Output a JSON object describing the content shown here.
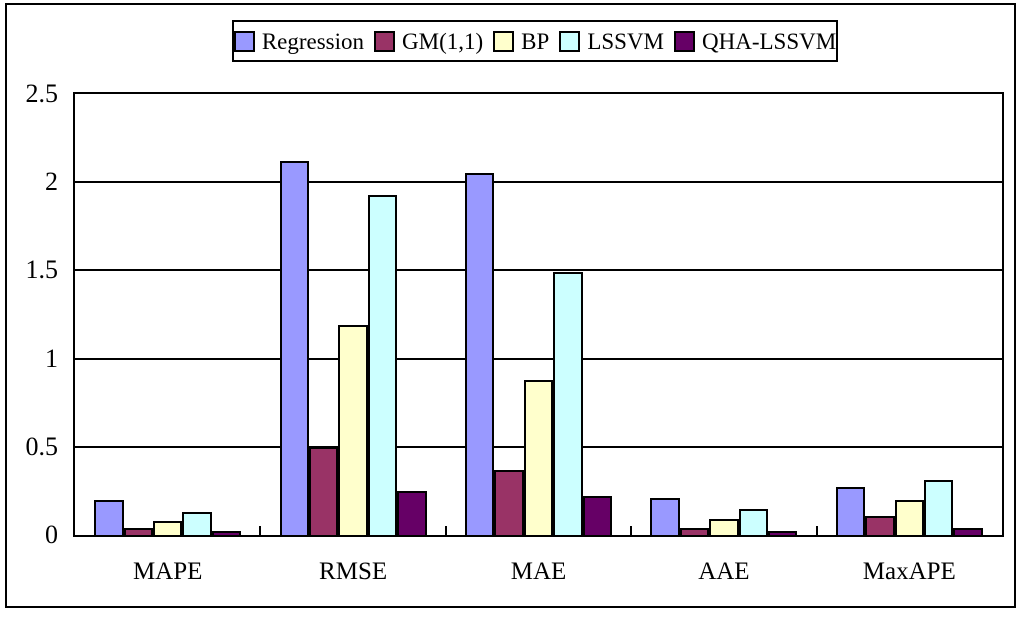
{
  "figure": {
    "background_color": "#ffffff",
    "border_color": "#000000"
  },
  "chart_data": {
    "type": "bar",
    "title": "",
    "xlabel": "",
    "ylabel": "",
    "categories": [
      "MAPE",
      "RMSE",
      "MAE",
      "AAE",
      "MaxAPE"
    ],
    "series": [
      {
        "name": "Regression",
        "color": "#9999ff",
        "values": [
          0.2,
          2.12,
          2.05,
          0.21,
          0.27
        ]
      },
      {
        "name": "GM(1,1)",
        "color": "#993366",
        "values": [
          0.04,
          0.5,
          0.37,
          0.04,
          0.11
        ]
      },
      {
        "name": "BP",
        "color": "#ffffcc",
        "values": [
          0.08,
          1.19,
          0.88,
          0.09,
          0.2
        ]
      },
      {
        "name": "LSSVM",
        "color": "#ccffff",
        "values": [
          0.13,
          1.93,
          1.49,
          0.15,
          0.31
        ]
      },
      {
        "name": "QHA-LSSVM",
        "color": "#660066",
        "values": [
          0.02,
          0.25,
          0.22,
          0.02,
          0.04
        ]
      }
    ],
    "ylim": [
      0,
      2.5
    ],
    "ytick_interval": 0.5,
    "ytick_labels": [
      "0",
      "0.5",
      "1",
      "1.5",
      "2",
      "2.5"
    ],
    "grid": "horizontal",
    "gridline_color": "#000000",
    "bar_border_color": "#000000",
    "legend_position": "top-center",
    "legend_entries": [
      "Regression",
      "GM(1,1)",
      "BP",
      "LSSVM",
      "QHA-LSSVM"
    ]
  }
}
